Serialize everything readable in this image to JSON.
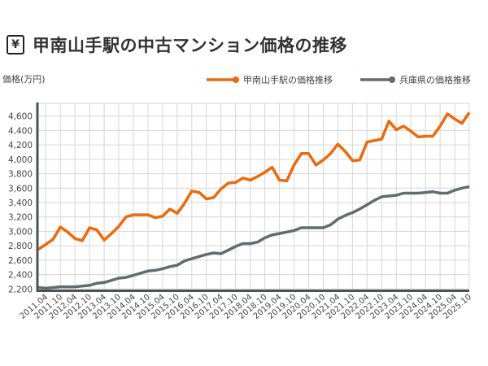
{
  "header": {
    "icon": "yen-icon",
    "title": "甲南山手駅の中古マンション価格の推移"
  },
  "chart_data": {
    "type": "line",
    "title": "甲南山手駅の中古マンション価格の推移",
    "ylabel": "価格(万円)",
    "xlabel": "",
    "ylim": [
      2200,
      4600
    ],
    "yticks": [
      "4,600",
      "4,400",
      "4,200",
      "4,000",
      "3,800",
      "3,600",
      "3,400",
      "3,200",
      "3,000",
      "2,800",
      "2,600",
      "2,400",
      "2,200"
    ],
    "xtick_labels": [
      "2011.04",
      "2011.10",
      "2012.04",
      "2012.10",
      "2013.04",
      "2013.10",
      "2014.04",
      "2014.10",
      "2015.04",
      "2015.10",
      "2016.04",
      "2016.10",
      "2017.04",
      "2017.10",
      "2018.04",
      "2018.10",
      "2019.04",
      "2019.10",
      "2020.04",
      "2020.10",
      "2021.04",
      "2021.10",
      "2022.04",
      "2022.10",
      "2023.04",
      "2023.10",
      "2024.04",
      "2024.10",
      "2025.04",
      "2025.10"
    ],
    "x": [
      "2011.01",
      "2011.04",
      "2011.07",
      "2011.10",
      "2012.01",
      "2012.04",
      "2012.07",
      "2012.10",
      "2013.01",
      "2013.04",
      "2013.07",
      "2013.10",
      "2014.01",
      "2014.04",
      "2014.07",
      "2014.10",
      "2015.01",
      "2015.04",
      "2015.07",
      "2015.10",
      "2016.01",
      "2016.04",
      "2016.07",
      "2016.10",
      "2017.01",
      "2017.04",
      "2017.07",
      "2017.10",
      "2018.01",
      "2018.04",
      "2018.07",
      "2018.10",
      "2019.01",
      "2019.04",
      "2019.07",
      "2019.10",
      "2020.01",
      "2020.04",
      "2020.07",
      "2020.10",
      "2021.01",
      "2021.04",
      "2021.07",
      "2021.10",
      "2022.01",
      "2022.04",
      "2022.07",
      "2022.10",
      "2023.01",
      "2023.04",
      "2023.07",
      "2023.10",
      "2024.01",
      "2024.04",
      "2024.07",
      "2024.10",
      "2025.01",
      "2025.04",
      "2025.07",
      "2025.10"
    ],
    "grid": true,
    "legend_position": "top-right",
    "series": [
      {
        "name": "甲南山手駅の価格推移",
        "color": "#ec6a0c",
        "values": [
          2750,
          2820,
          2890,
          3060,
          2990,
          2900,
          2870,
          3050,
          3020,
          2880,
          2970,
          3070,
          3200,
          3230,
          3230,
          3230,
          3190,
          3210,
          3310,
          3250,
          3390,
          3560,
          3540,
          3450,
          3470,
          3590,
          3670,
          3680,
          3740,
          3710,
          3760,
          3820,
          3890,
          3710,
          3700,
          3920,
          4080,
          4080,
          3920,
          3990,
          4080,
          4210,
          4110,
          3980,
          3990,
          4240,
          4260,
          4280,
          4530,
          4410,
          4460,
          4390,
          4310,
          4320,
          4320,
          4460,
          4630,
          4560,
          4500,
          4650
        ]
      },
      {
        "name": "兵庫県の価格推移",
        "color": "#5f6d73",
        "values": [
          2220,
          2210,
          2220,
          2230,
          2230,
          2230,
          2240,
          2250,
          2280,
          2290,
          2320,
          2350,
          2360,
          2390,
          2420,
          2450,
          2460,
          2480,
          2510,
          2530,
          2590,
          2620,
          2650,
          2680,
          2700,
          2690,
          2740,
          2790,
          2830,
          2830,
          2850,
          2910,
          2950,
          2970,
          2990,
          3010,
          3050,
          3050,
          3050,
          3050,
          3090,
          3170,
          3220,
          3260,
          3310,
          3370,
          3430,
          3480,
          3490,
          3500,
          3530,
          3530,
          3530,
          3540,
          3550,
          3530,
          3530,
          3570,
          3600,
          3620
        ]
      }
    ]
  }
}
